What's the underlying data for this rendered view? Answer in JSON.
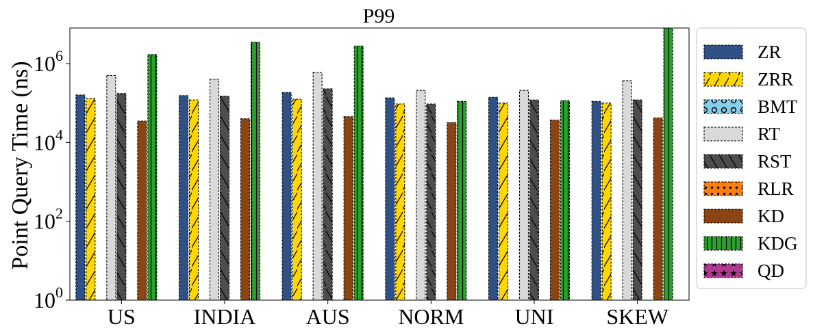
{
  "chart_data": {
    "type": "bar",
    "title": "P99",
    "xlabel": "",
    "ylabel": "Point Query Time (ns)",
    "yscale": "log",
    "ylim": [
      1,
      8000000
    ],
    "yticks": [
      {
        "value": 1,
        "base": "10",
        "exp": "0"
      },
      {
        "value": 100,
        "base": "10",
        "exp": "2"
      },
      {
        "value": 10000,
        "base": "10",
        "exp": "4"
      },
      {
        "value": 1000000,
        "base": "10",
        "exp": "6"
      }
    ],
    "categories": [
      "US",
      "INDIA",
      "AUS",
      "NORM",
      "UNI",
      "SKEW"
    ],
    "legend_position": "outside-right",
    "series": [
      {
        "name": "ZR",
        "color": "#2f5185",
        "hatch": "none",
        "values": [
          160000,
          155000,
          185000,
          135000,
          140000,
          110000
        ]
      },
      {
        "name": "ZRR",
        "color": "#ffd700",
        "hatch": "slash",
        "values": [
          130000,
          120000,
          125000,
          95000,
          100000,
          100000
        ]
      },
      {
        "name": "BMT",
        "color": "#87ceeb",
        "hatch": "circle",
        "values": [
          null,
          null,
          null,
          null,
          null,
          null
        ]
      },
      {
        "name": "RT",
        "color": "#d9d9d9",
        "hatch": "none",
        "values": [
          500000,
          400000,
          600000,
          210000,
          210000,
          370000
        ]
      },
      {
        "name": "RST",
        "color": "#4d4d4d",
        "hatch": "back",
        "values": [
          175000,
          150000,
          230000,
          95000,
          120000,
          120000
        ]
      },
      {
        "name": "RLR",
        "color": "#ff7f0e",
        "hatch": "dots",
        "values": [
          null,
          null,
          null,
          null,
          null,
          null
        ]
      },
      {
        "name": "KD",
        "color": "#8b4513",
        "hatch": "none",
        "values": [
          35000,
          40000,
          45000,
          32000,
          37000,
          42000
        ]
      },
      {
        "name": "KDG",
        "color": "#2ca02c",
        "hatch": "vert",
        "values": [
          1700000,
          3500000,
          2800000,
          110000,
          115000,
          8000000
        ]
      },
      {
        "name": "QD",
        "color": "#b03a92",
        "hatch": "stars",
        "values": [
          null,
          null,
          null,
          null,
          null,
          null
        ]
      }
    ]
  }
}
